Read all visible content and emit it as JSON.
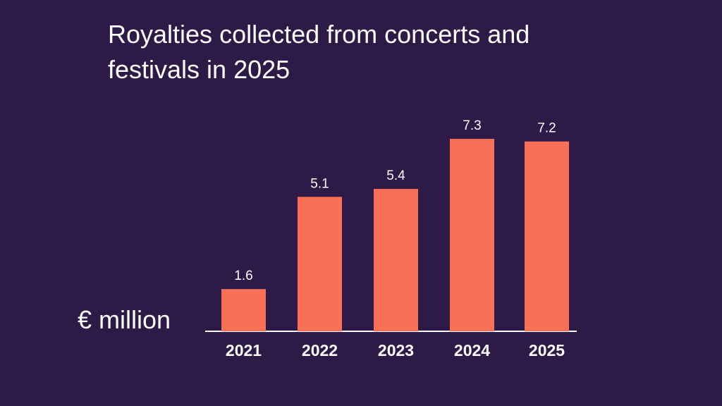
{
  "chart_data": {
    "type": "bar",
    "title": "Royalties collected from concerts and festivals in 2025",
    "ylabel": "€ million",
    "categories": [
      "2021",
      "2022",
      "2023",
      "2024",
      "2025"
    ],
    "values": [
      1.6,
      5.1,
      5.4,
      7.3,
      7.2
    ],
    "value_labels": [
      "1.6",
      "5.1",
      "5.4",
      "7.3",
      "7.2"
    ],
    "grid": false,
    "colors": {
      "bar": "#f87056",
      "background": "#2d1a47",
      "text": "#ffffff"
    }
  }
}
